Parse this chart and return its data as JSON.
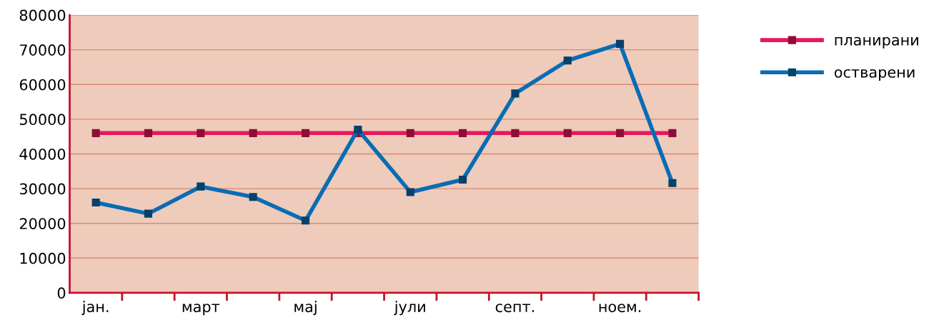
{
  "chart_data": {
    "type": "line",
    "categories": [
      "јан.",
      null,
      "март",
      null,
      "мај",
      null,
      "јули",
      null,
      "септ.",
      null,
      "ноем.",
      null
    ],
    "series": [
      {
        "name": "планирани",
        "color": "#e8185a",
        "values": [
          46000,
          46000,
          46000,
          46000,
          46000,
          46000,
          46000,
          46000,
          46000,
          46000,
          46000,
          46000
        ]
      },
      {
        "name": "остварени",
        "color": "#0a6cb4",
        "values": [
          26000,
          22800,
          30600,
          27600,
          20800,
          47000,
          29000,
          32600,
          57400,
          66900,
          71700,
          31600
        ]
      }
    ],
    "ylim": [
      0,
      80000
    ],
    "yticks": [
      0,
      10000,
      20000,
      30000,
      40000,
      50000,
      60000,
      70000,
      80000
    ],
    "grid": "y",
    "legend": "right",
    "marker": "square",
    "line_style": "solid"
  }
}
